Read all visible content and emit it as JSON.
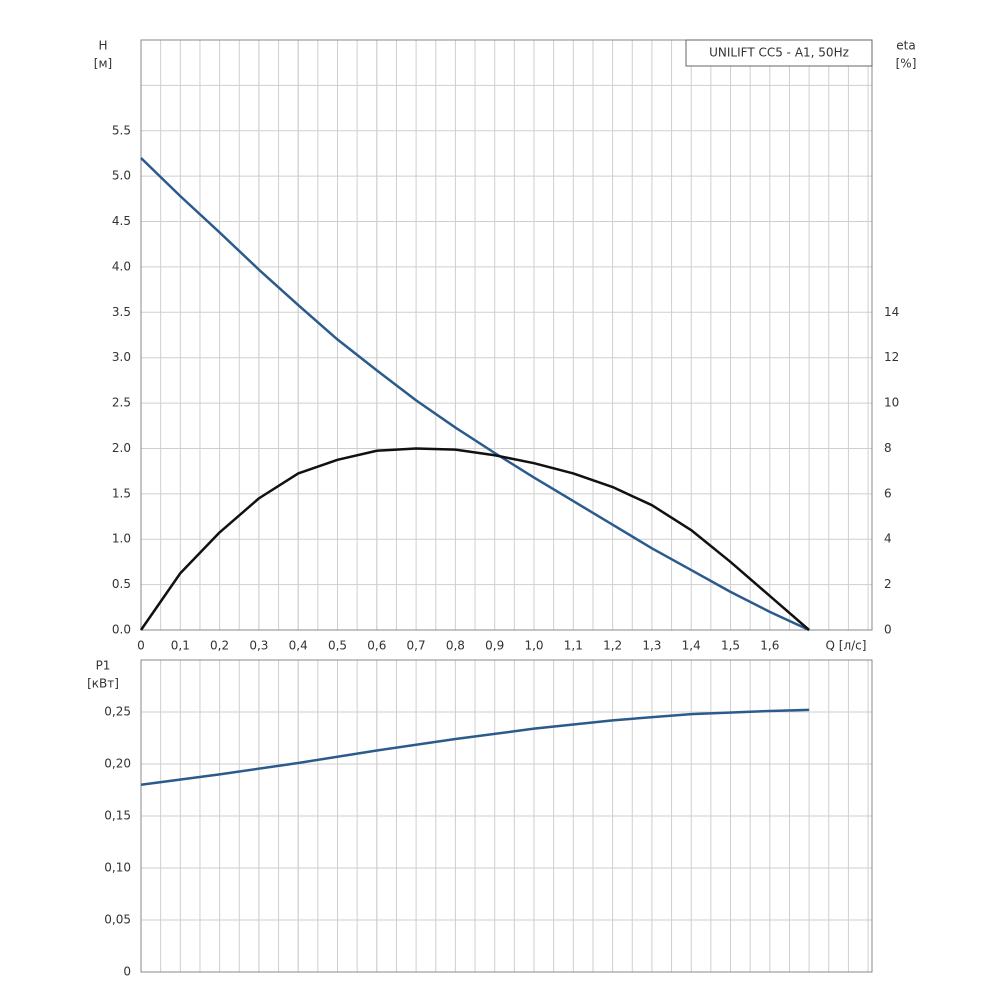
{
  "chart_data": [
    {
      "type": "line",
      "title": "UNILIFT CC5 - A1, 50Hz",
      "ylabel": "H",
      "yunit": "[м]",
      "y2label": "eta",
      "y2unit": "[%]",
      "xlabel": "Q [л/с]",
      "x": [
        0,
        0.1,
        0.2,
        0.3,
        0.4,
        0.5,
        0.6,
        0.7,
        0.8,
        0.9,
        1.0,
        1.1,
        1.2,
        1.3,
        1.4,
        1.5,
        1.6,
        1.7
      ],
      "series": [
        {
          "color": "#2b5b8c",
          "axis": "y",
          "values": [
            5.2,
            4.78,
            4.38,
            3.97,
            3.58,
            3.2,
            2.86,
            2.53,
            2.23,
            1.95,
            1.68,
            1.42,
            1.16,
            0.9,
            0.66,
            0.42,
            0.2,
            0
          ]
        },
        {
          "color": "#111111",
          "axis": "y2",
          "values": [
            0,
            2.5,
            4.3,
            5.8,
            6.9,
            7.5,
            7.9,
            8.0,
            7.95,
            7.7,
            7.35,
            6.9,
            6.3,
            5.5,
            4.4,
            3.0,
            1.5,
            0
          ]
        }
      ],
      "xlim": [
        0,
        1.86
      ],
      "xticks": [
        0,
        {
          "value": 0.1,
          "label": "0,1"
        },
        {
          "value": 0.2,
          "label": "0,2"
        },
        {
          "value": 0.3,
          "label": "0,3"
        },
        {
          "value": 0.4,
          "label": "0,4"
        },
        {
          "value": 0.5,
          "label": "0,5"
        },
        {
          "value": 0.6,
          "label": "0,6"
        },
        {
          "value": 0.7,
          "label": "0,7"
        },
        {
          "value": 0.8,
          "label": "0,8"
        },
        {
          "value": 0.9,
          "label": "0,9"
        },
        {
          "value": 1.0,
          "label": "1,0"
        },
        {
          "value": 1.1,
          "label": "1,1"
        },
        {
          "value": 1.2,
          "label": "1,2"
        },
        {
          "value": 1.3,
          "label": "1,3"
        },
        {
          "value": 1.4,
          "label": "1,4"
        },
        {
          "value": 1.5,
          "label": "1,5"
        },
        {
          "value": 1.6,
          "label": "1,6"
        }
      ],
      "ylim": [
        0,
        6.5
      ],
      "yticks": [
        {
          "value": 0,
          "label": "0.0"
        },
        0.5,
        {
          "value": 1,
          "label": "1.0"
        },
        1.5,
        {
          "value": 2,
          "label": "2.0"
        },
        2.5,
        {
          "value": 3,
          "label": "3.0"
        },
        3.5,
        {
          "value": 4,
          "label": "4.0"
        },
        4.5,
        {
          "value": 5,
          "label": "5.0"
        },
        5.5
      ],
      "y2lim": [
        0,
        26
      ],
      "y2ticks": [
        0,
        2,
        4,
        6,
        8,
        10,
        12,
        14
      ],
      "grid": true
    },
    {
      "type": "line",
      "ylabel": "P1",
      "yunit": "[кВт]",
      "x": [
        0,
        0.2,
        0.4,
        0.6,
        0.8,
        1.0,
        1.2,
        1.4,
        1.6,
        1.7
      ],
      "series": [
        {
          "color": "#2b5b8c",
          "axis": "y",
          "values": [
            0.18,
            0.19,
            0.201,
            0.213,
            0.224,
            0.234,
            0.242,
            0.248,
            0.251,
            0.252
          ]
        }
      ],
      "xlim": [
        0,
        1.86
      ],
      "ylim": [
        0,
        0.3
      ],
      "yticks": [
        0,
        {
          "value": 0.05,
          "label": "0,05"
        },
        {
          "value": 0.1,
          "label": "0,10"
        },
        {
          "value": 0.15,
          "label": "0,15"
        },
        {
          "value": 0.2,
          "label": "0,20"
        },
        {
          "value": 0.25,
          "label": "0,25"
        }
      ],
      "grid": true
    }
  ]
}
